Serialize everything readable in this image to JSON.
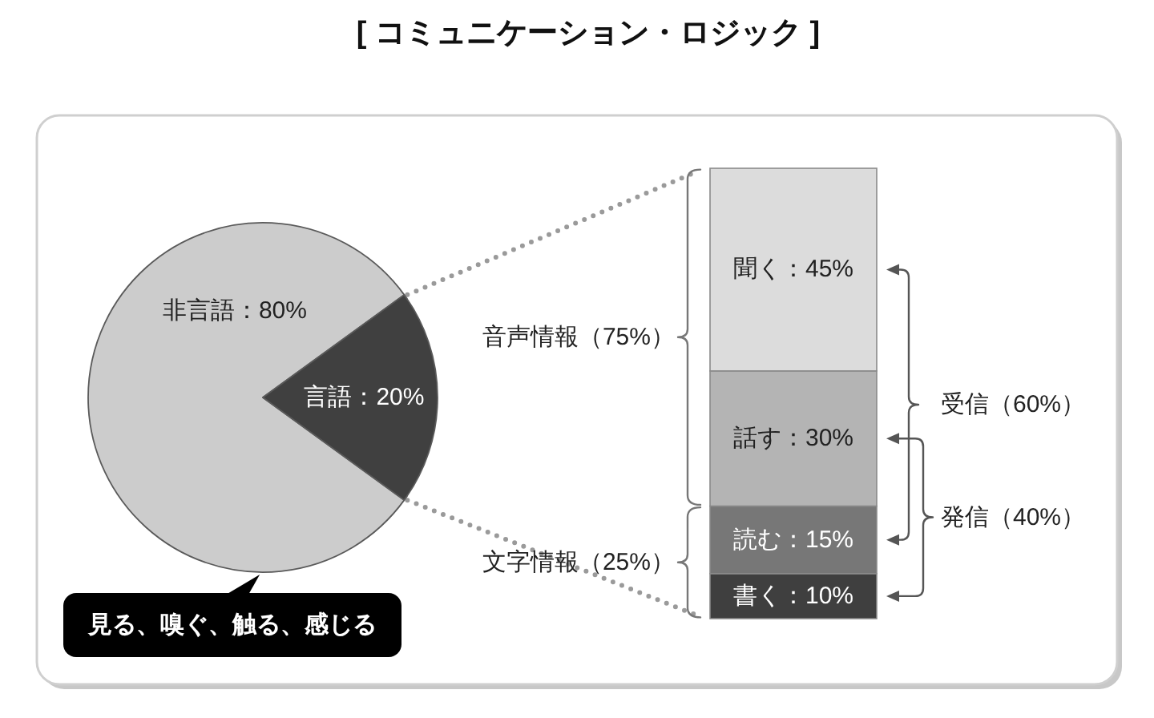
{
  "chart_data": [
    {
      "type": "pie",
      "title": "[ コミュニケーション・ロジック ]",
      "categories": [
        null,
        null
      ],
      "values": [
        80,
        20
      ],
      "colors": [
        "#cccccc",
        "#404040"
      ],
      "value_labels": [
        "非言語：80%",
        "言語：20%"
      ],
      "annotations": [
        "見る、嗅ぐ、触る、感じる"
      ]
    },
    {
      "type": "bar",
      "stacked": true,
      "categories": [
        null
      ],
      "series": [
        {
          "color": "#3f3f3f",
          "values": [
            10
          ],
          "value_labels": [
            "書く：10%"
          ]
        },
        {
          "color": "#777777",
          "values": [
            15
          ],
          "value_labels": [
            "読む：15%"
          ]
        },
        {
          "color": "#b4b4b4",
          "values": [
            30
          ],
          "value_labels": [
            "話す：30%"
          ]
        },
        {
          "color": "#dcdcdc",
          "values": [
            45
          ],
          "value_labels": [
            "聞く：45%"
          ]
        }
      ],
      "annotations": [
        "音声情報（75%）",
        "文字情報（25%）",
        "受信（60%）",
        "発信（40%）"
      ]
    }
  ]
}
